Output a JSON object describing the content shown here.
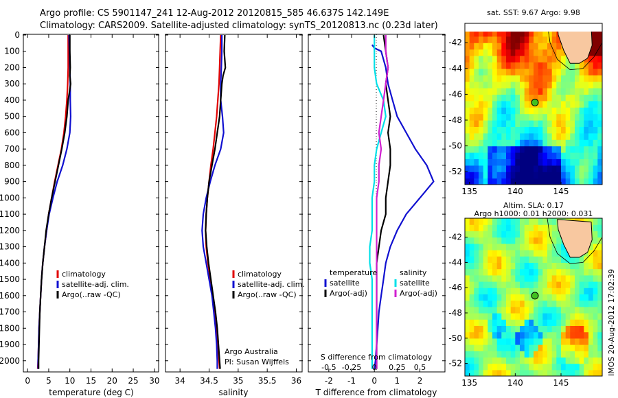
{
  "header": {
    "line1": "Argo profile: CS 5901147_241 12-Aug-2012 20120815_585 46.637S 142.149E",
    "line2": "Climatology: CARS2009. Satellite-adjusted climatology: synTS_20120813.nc (0.23d later)"
  },
  "colors": {
    "climatology": "#e00000",
    "satellite": "#1010d0",
    "argo": "#000000",
    "temp_diff_satellite": "#1010d0",
    "sal_diff_satellite": "#00e0e8",
    "sal_diff_argo": "#d020d0",
    "land": "#f8c8a0",
    "marker": "#40c020"
  },
  "chart_data": [
    {
      "type": "line",
      "name": "temperature-profile",
      "xlabel": "temperature (deg C)",
      "ylabel": "",
      "xlim": [
        -1,
        31
      ],
      "ylim": [
        0,
        2060
      ],
      "y_inverted": true,
      "xticks": [
        0,
        5,
        10,
        15,
        20,
        25,
        30
      ],
      "yticks": [
        0,
        100,
        200,
        300,
        400,
        500,
        600,
        700,
        800,
        900,
        1000,
        1100,
        1200,
        1300,
        1400,
        1500,
        1600,
        1700,
        1800,
        1900,
        2000
      ],
      "legend_position": "lower-middle",
      "series": [
        {
          "name": "climatology",
          "color_key": "climatology",
          "points": [
            [
              9.6,
              0
            ],
            [
              9.6,
              100
            ],
            [
              9.6,
              200
            ],
            [
              9.5,
              300
            ],
            [
              9.3,
              400
            ],
            [
              9.0,
              500
            ],
            [
              8.6,
              600
            ],
            [
              8.0,
              700
            ],
            [
              7.2,
              800
            ],
            [
              6.4,
              900
            ],
            [
              5.7,
              1000
            ],
            [
              5.0,
              1100
            ],
            [
              4.5,
              1200
            ],
            [
              4.0,
              1300
            ],
            [
              3.6,
              1400
            ],
            [
              3.3,
              1500
            ],
            [
              3.1,
              1600
            ],
            [
              2.9,
              1700
            ],
            [
              2.7,
              1800
            ],
            [
              2.6,
              1900
            ],
            [
              2.5,
              2000
            ],
            [
              2.4,
              2050
            ]
          ]
        },
        {
          "name": "satellite-adj. clim.",
          "color_key": "satellite",
          "points": [
            [
              9.8,
              0
            ],
            [
              9.9,
              100
            ],
            [
              10.0,
              200
            ],
            [
              10.1,
              300
            ],
            [
              10.1,
              400
            ],
            [
              10.2,
              500
            ],
            [
              10.0,
              600
            ],
            [
              9.3,
              700
            ],
            [
              8.3,
              800
            ],
            [
              7.0,
              900
            ],
            [
              6.0,
              1000
            ],
            [
              5.1,
              1100
            ],
            [
              4.5,
              1200
            ],
            [
              4.0,
              1300
            ],
            [
              3.6,
              1400
            ],
            [
              3.3,
              1500
            ],
            [
              3.1,
              1600
            ],
            [
              2.9,
              1700
            ],
            [
              2.7,
              1800
            ],
            [
              2.6,
              1900
            ],
            [
              2.5,
              2000
            ],
            [
              2.5,
              2050
            ]
          ]
        },
        {
          "name": "Argo(..raw -QC)",
          "color_key": "argo",
          "points": [
            [
              10.0,
              0
            ],
            [
              10.0,
              100
            ],
            [
              10.1,
              200
            ],
            [
              10.0,
              250
            ],
            [
              10.2,
              300
            ],
            [
              9.6,
              400
            ],
            [
              9.3,
              500
            ],
            [
              8.8,
              600
            ],
            [
              8.1,
              700
            ],
            [
              7.3,
              800
            ],
            [
              6.5,
              900
            ],
            [
              5.7,
              1000
            ],
            [
              5.0,
              1100
            ],
            [
              4.4,
              1200
            ],
            [
              4.0,
              1300
            ],
            [
              3.6,
              1400
            ],
            [
              3.3,
              1500
            ],
            [
              3.1,
              1600
            ],
            [
              2.9,
              1700
            ],
            [
              2.8,
              1800
            ],
            [
              2.7,
              1900
            ],
            [
              2.6,
              2000
            ],
            [
              2.6,
              2050
            ]
          ]
        }
      ]
    },
    {
      "type": "line",
      "name": "salinity-profile",
      "xlabel": "salinity",
      "xlim": [
        33.75,
        36.1
      ],
      "ylim": [
        0,
        2060
      ],
      "y_inverted": true,
      "xticks": [
        34,
        34.5,
        35,
        35.5,
        36
      ],
      "legend_position": "lower-middle",
      "annotation": [
        "Argo Australia",
        "PI: Susan Wijffels"
      ],
      "series": [
        {
          "name": "climatology",
          "color_key": "climatology",
          "points": [
            [
              34.7,
              0
            ],
            [
              34.69,
              100
            ],
            [
              34.68,
              200
            ],
            [
              34.67,
              300
            ],
            [
              34.65,
              400
            ],
            [
              34.63,
              500
            ],
            [
              34.6,
              600
            ],
            [
              34.57,
              700
            ],
            [
              34.53,
              800
            ],
            [
              34.5,
              900
            ],
            [
              34.47,
              1000
            ],
            [
              34.45,
              1100
            ],
            [
              34.44,
              1200
            ],
            [
              34.45,
              1300
            ],
            [
              34.48,
              1400
            ],
            [
              34.52,
              1500
            ],
            [
              34.56,
              1600
            ],
            [
              34.6,
              1700
            ],
            [
              34.63,
              1800
            ],
            [
              34.65,
              1900
            ],
            [
              34.67,
              2000
            ],
            [
              34.68,
              2050
            ]
          ]
        },
        {
          "name": "satellite-adj. clim.",
          "color_key": "satellite",
          "points": [
            [
              34.72,
              0
            ],
            [
              34.72,
              100
            ],
            [
              34.71,
              200
            ],
            [
              34.7,
              300
            ],
            [
              34.7,
              400
            ],
            [
              34.73,
              500
            ],
            [
              34.75,
              600
            ],
            [
              34.7,
              700
            ],
            [
              34.6,
              800
            ],
            [
              34.52,
              900
            ],
            [
              34.45,
              1000
            ],
            [
              34.4,
              1100
            ],
            [
              34.38,
              1200
            ],
            [
              34.4,
              1300
            ],
            [
              34.45,
              1400
            ],
            [
              34.5,
              1500
            ],
            [
              34.55,
              1600
            ],
            [
              34.58,
              1700
            ],
            [
              34.61,
              1800
            ],
            [
              34.63,
              1900
            ],
            [
              34.64,
              2000
            ],
            [
              34.64,
              2050
            ]
          ]
        },
        {
          "name": "Argo(..raw -QC)",
          "color_key": "argo",
          "points": [
            [
              34.77,
              0
            ],
            [
              34.76,
              100
            ],
            [
              34.78,
              200
            ],
            [
              34.74,
              250
            ],
            [
              34.72,
              300
            ],
            [
              34.7,
              400
            ],
            [
              34.68,
              500
            ],
            [
              34.64,
              600
            ],
            [
              34.6,
              700
            ],
            [
              34.55,
              800
            ],
            [
              34.5,
              900
            ],
            [
              34.47,
              1000
            ],
            [
              34.45,
              1100
            ],
            [
              34.44,
              1200
            ],
            [
              34.46,
              1300
            ],
            [
              34.49,
              1400
            ],
            [
              34.53,
              1500
            ],
            [
              34.57,
              1600
            ],
            [
              34.61,
              1700
            ],
            [
              34.64,
              1800
            ],
            [
              34.66,
              1900
            ],
            [
              34.68,
              2000
            ],
            [
              34.69,
              2050
            ]
          ]
        }
      ]
    },
    {
      "type": "line",
      "name": "difference-profile",
      "xlabel": "T difference from climatology",
      "xlabel_top": "S difference from climatology",
      "xlim": [
        -2.9,
        3.1
      ],
      "ylim": [
        0,
        2060
      ],
      "y_inverted": true,
      "xticks": [
        -2,
        -1,
        0,
        1,
        2
      ],
      "s_xticks": [
        {
          "label": "-0.5",
          "t_pos": -2.0
        },
        {
          "label": "-0.25",
          "t_pos": -1.0
        },
        {
          "label": "0",
          "t_pos": 0.0
        },
        {
          "label": "0.25",
          "t_pos": 1.0
        },
        {
          "label": "0.5",
          "t_pos": 2.0
        }
      ],
      "legend_headers": {
        "temperature": "temperature",
        "salinity": "salinity"
      },
      "series": [
        {
          "name": "satellite",
          "group": "temperature",
          "color_key": "temp_diff_satellite",
          "points": [
            [
              -0.1,
              60
            ],
            [
              0.0,
              80
            ],
            [
              0.3,
              100
            ],
            [
              0.5,
              200
            ],
            [
              0.6,
              300
            ],
            [
              0.8,
              400
            ],
            [
              1.0,
              500
            ],
            [
              1.4,
              600
            ],
            [
              1.8,
              700
            ],
            [
              2.3,
              800
            ],
            [
              2.6,
              900
            ],
            [
              2.0,
              1000
            ],
            [
              1.4,
              1100
            ],
            [
              1.0,
              1200
            ],
            [
              0.7,
              1300
            ],
            [
              0.5,
              1400
            ],
            [
              0.4,
              1500
            ],
            [
              0.3,
              1600
            ],
            [
              0.2,
              1700
            ],
            [
              0.15,
              1800
            ],
            [
              0.1,
              1900
            ],
            [
              0.05,
              2000
            ],
            [
              0.0,
              2050
            ]
          ]
        },
        {
          "name": "Argo(-adj)",
          "group": "temperature",
          "color_key": "argo",
          "points": [
            [
              0.4,
              0
            ],
            [
              0.5,
              100
            ],
            [
              0.6,
              200
            ],
            [
              0.5,
              300
            ],
            [
              0.6,
              400
            ],
            [
              0.7,
              500
            ],
            [
              0.6,
              600
            ],
            [
              0.7,
              700
            ],
            [
              0.7,
              800
            ],
            [
              0.6,
              900
            ],
            [
              0.5,
              1000
            ],
            [
              0.5,
              1100
            ],
            [
              0.3,
              1200
            ],
            [
              0.2,
              1300
            ],
            [
              0.1,
              1400
            ],
            [
              0.1,
              1500
            ],
            [
              0.1,
              1600
            ],
            [
              0.1,
              1700
            ],
            [
              0.1,
              1800
            ],
            [
              0.1,
              1900
            ],
            [
              0.1,
              2000
            ],
            [
              0.1,
              2050
            ]
          ]
        },
        {
          "name": "satellite",
          "group": "salinity",
          "color_key": "sal_diff_satellite",
          "points": [
            [
              0.0,
              0
            ],
            [
              0.0,
              100
            ],
            [
              0.0,
              200
            ],
            [
              0.1,
              300
            ],
            [
              0.4,
              400
            ],
            [
              0.5,
              500
            ],
            [
              0.3,
              600
            ],
            [
              0.1,
              700
            ],
            [
              0.0,
              800
            ],
            [
              0.0,
              900
            ],
            [
              -0.1,
              1000
            ],
            [
              -0.1,
              1100
            ],
            [
              -0.1,
              1200
            ],
            [
              -0.2,
              1300
            ],
            [
              -0.2,
              1400
            ],
            [
              -0.1,
              1500
            ],
            [
              -0.1,
              1600
            ],
            [
              -0.1,
              1700
            ],
            [
              -0.1,
              1800
            ],
            [
              -0.1,
              1900
            ],
            [
              -0.1,
              2000
            ],
            [
              -0.1,
              2050
            ]
          ]
        },
        {
          "name": "Argo(-adj)",
          "group": "salinity",
          "color_key": "sal_diff_argo",
          "points": [
            [
              0.5,
              0
            ],
            [
              0.5,
              100
            ],
            [
              0.6,
              200
            ],
            [
              0.5,
              300
            ],
            [
              0.4,
              400
            ],
            [
              0.3,
              500
            ],
            [
              0.2,
              600
            ],
            [
              0.3,
              700
            ],
            [
              0.2,
              800
            ],
            [
              0.2,
              900
            ],
            [
              0.1,
              1000
            ],
            [
              0.1,
              1100
            ],
            [
              0.1,
              1200
            ],
            [
              0.1,
              1300
            ],
            [
              0.1,
              1400
            ],
            [
              0.1,
              1500
            ],
            [
              0.1,
              1600
            ],
            [
              0.1,
              1700
            ],
            [
              0.1,
              1800
            ],
            [
              0.1,
              1900
            ],
            [
              0.1,
              2000
            ],
            [
              0.1,
              2050
            ]
          ]
        }
      ]
    },
    {
      "type": "heatmap",
      "name": "sst-map",
      "title": "sat. SST: 9.67 Argo: 9.98",
      "xlim": [
        134.5,
        149.5
      ],
      "ylim": [
        -53,
        -40.5
      ],
      "xticks": [
        135,
        140,
        145
      ],
      "yticks": [
        -42,
        -44,
        -46,
        -48,
        -50,
        -52
      ],
      "marker": [
        142.149,
        -46.637
      ]
    },
    {
      "type": "heatmap",
      "name": "sla-map",
      "title": "Altim. SLA: 0.17",
      "subtitle": "Argo h1000: 0.01 h2000: 0.031",
      "xlim": [
        134.5,
        149.5
      ],
      "ylim": [
        -53,
        -40.5
      ],
      "xticks": [
        135,
        140,
        145
      ],
      "yticks": [
        -42,
        -44,
        -46,
        -48,
        -50,
        -52
      ],
      "marker": [
        142.149,
        -46.637
      ]
    }
  ],
  "footer": {
    "vertical_label": "IMOS 20-Aug-2012 17:02:39"
  }
}
